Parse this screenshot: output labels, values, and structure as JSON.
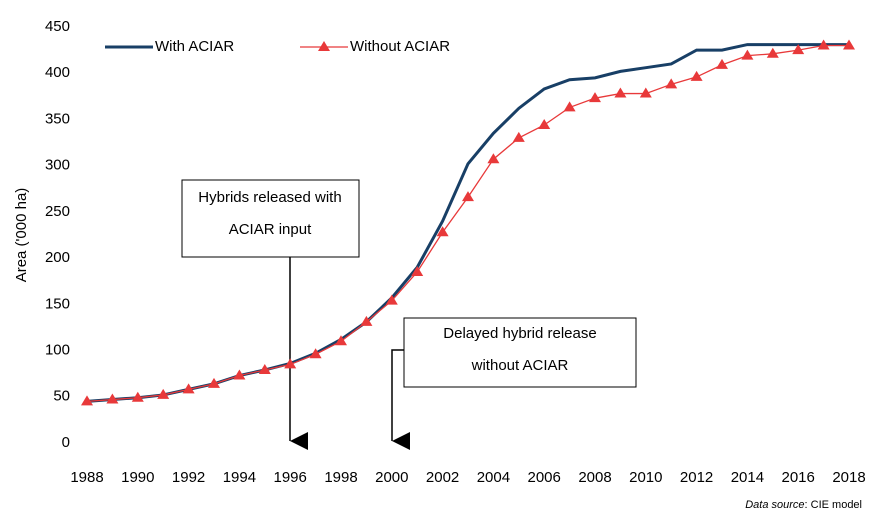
{
  "chart_data": {
    "type": "line",
    "y_label": "Area ('000 ha)",
    "x": [
      1988,
      1989,
      1990,
      1991,
      1992,
      1993,
      1994,
      1995,
      1996,
      1997,
      1998,
      1999,
      2000,
      2001,
      2002,
      2003,
      2004,
      2005,
      2006,
      2007,
      2008,
      2009,
      2010,
      2011,
      2012,
      2013,
      2014,
      2015,
      2016,
      2017,
      2018
    ],
    "series": [
      {
        "name": "With ACIAR",
        "color": "#183f66",
        "marker": "none",
        "values": [
          45,
          47,
          49,
          52,
          58,
          64,
          73,
          79,
          86,
          97,
          112,
          131,
          157,
          190,
          240,
          302,
          335,
          362,
          383,
          393,
          395,
          402,
          406,
          410,
          425,
          425,
          431,
          431,
          431,
          431,
          431
        ]
      },
      {
        "name": "Without ACIAR",
        "color": "#e8393a",
        "marker": "triangle",
        "values": [
          45,
          47,
          49,
          52,
          58,
          64,
          73,
          79,
          85,
          96,
          110,
          131,
          154,
          185,
          228,
          266,
          307,
          330,
          344,
          363,
          373,
          378,
          378,
          388,
          396,
          409,
          419,
          421,
          425,
          430,
          430
        ]
      }
    ],
    "xlim": [
      1988,
      2018
    ],
    "xticks": [
      1988,
      1990,
      1992,
      1994,
      1996,
      1998,
      2000,
      2002,
      2004,
      2006,
      2008,
      2010,
      2012,
      2014,
      2016,
      2018
    ],
    "ylim": [
      0,
      450
    ],
    "yticks": [
      0,
      50,
      100,
      150,
      200,
      250,
      300,
      350,
      400,
      450
    ],
    "grid": false,
    "legend": "top-left",
    "annotations": [
      {
        "lines": [
          "Hybrids released with",
          "ACIAR input"
        ]
      },
      {
        "lines": [
          "Delayed hybrid release",
          "without ACIAR"
        ]
      }
    ],
    "source": {
      "label": "Data source",
      "text": ": CIE model"
    }
  }
}
